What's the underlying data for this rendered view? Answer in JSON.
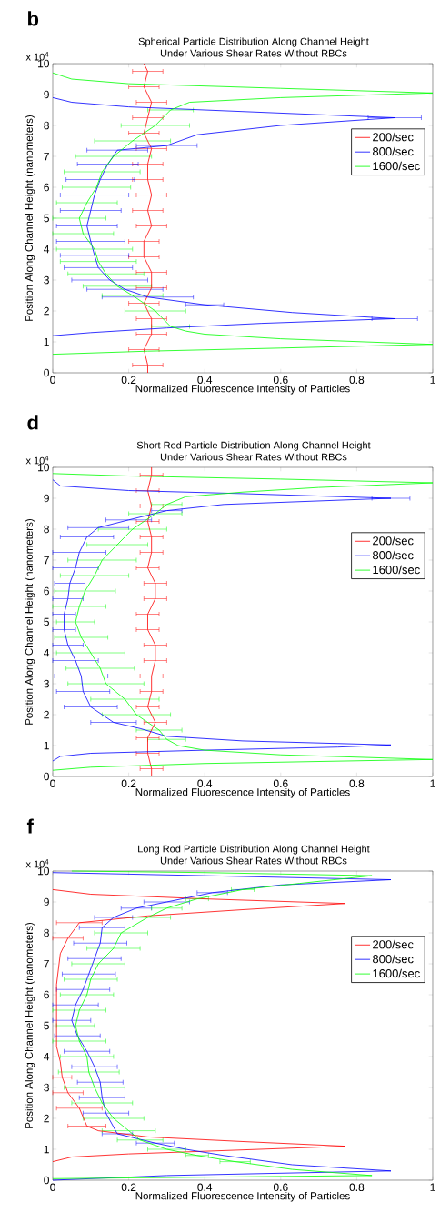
{
  "chart_data": [
    {
      "type": "line",
      "title": "Spherical Particle Distribution Along Channel Height",
      "subtitle": "Under Various Shear Rates Without RBCs",
      "xlabel": "Normalized Fluorescence Intensity of Particles",
      "ylabel": "Position Along Channel Height (nanometers)",
      "annotations": [
        "b",
        "x 10$^{4}$"
      ],
      "xlim": [
        0,
        1
      ],
      "xticks": [
        0,
        0.2,
        0.4,
        0.6,
        0.8,
        1
      ],
      "ylim": [
        0,
        10
      ],
      "yticks": [
        0,
        1,
        2,
        3,
        4,
        5,
        6,
        7,
        8,
        9,
        10
      ],
      "legend": "top right",
      "series": [
        {
          "name": "200/sec",
          "color": "#ff0000",
          "x": [
            0.25,
            0.25,
            0.24,
            0.26,
            0.26,
            0.24,
            0.26,
            0.26,
            0.24,
            0.24,
            0.26,
            0.25,
            0.26,
            0.25,
            0.25,
            0.26,
            0.24,
            0.25,
            0.26,
            0.24,
            0.25,
            0.24
          ],
          "values": [
            0,
            0.25,
            0.75,
            1.25,
            1.75,
            2.25,
            2.75,
            3.25,
            3.75,
            4.25,
            4.75,
            5.25,
            5.75,
            6.25,
            6.75,
            7.25,
            7.75,
            8.25,
            8.75,
            9.25,
            9.75,
            10
          ],
          "xerrors": [
            null,
            0.04,
            0.04,
            0.04,
            0.04,
            0.04,
            0.04,
            0.04,
            0.04,
            0.04,
            0.04,
            0.04,
            0.04,
            0.04,
            0.04,
            0.04,
            0.04,
            0.04,
            0.04,
            0.04,
            0.04,
            null
          ]
        },
        {
          "name": "800/sec",
          "color": "#0000ff",
          "x": [
            0,
            0.1,
            0.3,
            0.55,
            0.9,
            0.63,
            0.4,
            0.25,
            0.19,
            0.15,
            0.12,
            0.11,
            0.1,
            0.09,
            0.1,
            0.11,
            0.125,
            0.145,
            0.17,
            0.3,
            0.38,
            0.6,
            0.9,
            0.5,
            0.2,
            0.05,
            0
          ],
          "values": [
            1.2,
            1.3,
            1.45,
            1.6,
            1.75,
            1.95,
            2.2,
            2.45,
            2.7,
            3,
            3.4,
            3.8,
            4.25,
            4.75,
            5.25,
            5.75,
            6.25,
            6.75,
            7.2,
            7.35,
            7.7,
            8,
            8.25,
            8.45,
            8.6,
            8.75,
            8.9
          ],
          "xerrors": [
            null,
            null,
            null,
            null,
            0.06,
            null,
            0.05,
            0.12,
            0.1,
            0.1,
            0.09,
            0.09,
            0.09,
            0.08,
            0.08,
            0.09,
            0.09,
            0.08,
            0.08,
            0.08,
            null,
            null,
            0.07,
            null,
            null,
            null,
            null
          ]
        },
        {
          "name": "1600/sec",
          "color": "#00ff00",
          "x": [
            0,
            0.25,
            0.6,
            1,
            0.6,
            0.4,
            0.35,
            0.31,
            0.27,
            0.21,
            0.17,
            0.14,
            0.12,
            0.11,
            0.08,
            0.07,
            0.09,
            0.115,
            0.13,
            0.16,
            0.21,
            0.27,
            0.31,
            0.36,
            0.6,
            1,
            0.6,
            0.2,
            0.05,
            0
          ],
          "values": [
            0.6,
            0.7,
            0.8,
            0.92,
            1.1,
            1.25,
            1.35,
            1.5,
            2,
            2.5,
            2.8,
            3.2,
            3.6,
            4,
            4.5,
            5,
            5.5,
            6,
            6.5,
            7,
            7.5,
            8,
            8.5,
            8.75,
            8.9,
            9.05,
            9.2,
            9.35,
            9.5,
            9.7
          ],
          "xerrors": [
            null,
            null,
            null,
            null,
            null,
            null,
            null,
            0.05,
            0.08,
            0.08,
            0.09,
            0.1,
            0.1,
            0.1,
            0.08,
            0.07,
            0.08,
            0.09,
            0.1,
            0.1,
            0.1,
            0.09,
            0.06,
            null,
            null,
            null,
            null,
            null,
            null,
            null
          ]
        }
      ]
    },
    {
      "type": "line",
      "title": "Short Rod Particle Distribution Along Channel Height",
      "subtitle": "Under Various Shear Rates Without RBCs",
      "xlabel": "Normalized Fluorescence Intensity of Particles",
      "ylabel": "Position Along Channel Height (nanometers)",
      "annotations": [
        "d",
        "x 10$^{4}$"
      ],
      "xlim": [
        0,
        1
      ],
      "xticks": [
        0,
        0.2,
        0.4,
        0.6,
        0.8,
        1
      ],
      "ylim": [
        0,
        10
      ],
      "yticks": [
        0,
        1,
        2,
        3,
        4,
        5,
        6,
        7,
        8,
        9,
        10
      ],
      "legend": "top right",
      "series": [
        {
          "name": "200/sec",
          "color": "#ff0000",
          "x": [
            0.26,
            0.26,
            0.25,
            0.25,
            0.27,
            0.25,
            0.26,
            0.26,
            0.27,
            0.27,
            0.25,
            0.25,
            0.27,
            0.27,
            0.25,
            0.26,
            0.26,
            0.25,
            0.26,
            0.25,
            0.26,
            0.26
          ],
          "values": [
            0,
            0.25,
            0.75,
            1.25,
            1.75,
            2.25,
            2.75,
            3.25,
            3.75,
            4.25,
            4.75,
            5.25,
            5.75,
            6.25,
            6.75,
            7.25,
            7.75,
            8.25,
            8.75,
            9.25,
            9.75,
            10
          ],
          "xerrors": [
            null,
            0.03,
            0.03,
            0.03,
            0.03,
            0.03,
            0.03,
            0.03,
            0.03,
            0.03,
            0.03,
            0.03,
            0.03,
            0.03,
            0.03,
            0.03,
            0.03,
            0.03,
            0.03,
            0.03,
            0.03,
            null
          ]
        },
        {
          "name": "800/sec",
          "color": "#0000ff",
          "x": [
            0,
            0.02,
            0.1,
            0.4,
            0.75,
            0.89,
            0.5,
            0.3,
            0.23,
            0.16,
            0.1,
            0.08,
            0.075,
            0.06,
            0.04,
            0.03,
            0.03,
            0.04,
            0.045,
            0.06,
            0.07,
            0.09,
            0.12,
            0.2,
            0.3,
            0.45,
            0.89,
            0.5,
            0.2,
            0.02,
            0
          ],
          "values": [
            0.5,
            0.65,
            0.75,
            0.85,
            0.95,
            1.02,
            1.15,
            1.3,
            1.55,
            1.75,
            2.25,
            2.75,
            3.25,
            3.75,
            4.25,
            4.75,
            5.25,
            5.75,
            6.25,
            6.75,
            7.25,
            7.75,
            8.05,
            8.3,
            8.6,
            8.8,
            9,
            9.15,
            9.25,
            9.4,
            9.6
          ],
          "xerrors": [
            null,
            null,
            null,
            null,
            null,
            null,
            null,
            null,
            null,
            0.06,
            0.07,
            0.07,
            0.07,
            0.06,
            0.04,
            0.03,
            0.03,
            0.04,
            0.04,
            0.06,
            0.07,
            0.07,
            0.08,
            0.06,
            0.04,
            null,
            0.05,
            null,
            null,
            null,
            null
          ]
        },
        {
          "name": "1600/sec",
          "color": "#00ff00",
          "x": [
            0,
            0.1,
            0.4,
            1,
            0.6,
            0.4,
            0.33,
            0.3,
            0.28,
            0.22,
            0.19,
            0.14,
            0.125,
            0.1,
            0.075,
            0.06,
            0.07,
            0.085,
            0.11,
            0.13,
            0.17,
            0.21,
            0.27,
            0.3,
            0.35,
            0.5,
            0.7,
            1,
            0.6,
            0.2,
            0
          ],
          "values": [
            0.2,
            0.3,
            0.42,
            0.55,
            0.7,
            0.85,
            1,
            1.2,
            1.5,
            2,
            2.5,
            3,
            3.5,
            4,
            4.5,
            5,
            5.5,
            6,
            6.5,
            7,
            7.5,
            8,
            8.5,
            8.8,
            9.05,
            9.2,
            9.35,
            9.5,
            9.62,
            9.72,
            9.8
          ],
          "xerrors": [
            null,
            null,
            null,
            null,
            null,
            null,
            null,
            0.05,
            0.06,
            0.09,
            0.09,
            0.1,
            0.09,
            0.09,
            0.07,
            0.05,
            0.07,
            0.08,
            0.09,
            0.09,
            0.08,
            0.09,
            0.07,
            0.04,
            null,
            null,
            null,
            null,
            null,
            null,
            null
          ]
        }
      ]
    },
    {
      "type": "line",
      "title": "Long Rod Particle Distribution Along Channel Height",
      "subtitle": "Under Various Shear Rates Without RBCs",
      "xlabel": "Normalized Fluorescence Intensity of Particles",
      "ylabel": "Position Along Channel Height (nanometers)",
      "annotations": [
        "f",
        "x 10$^{4}$"
      ],
      "xlim": [
        0,
        1
      ],
      "xticks": [
        0,
        0.2,
        0.4,
        0.6,
        0.8,
        1
      ],
      "ylim": [
        0,
        10
      ],
      "yticks": [
        0,
        1,
        2,
        3,
        4,
        5,
        6,
        7,
        8,
        9,
        10
      ],
      "legend": "top right",
      "series": [
        {
          "name": "200/sec",
          "color": "#ff0000",
          "x": [
            0,
            0.05,
            0.2,
            0.5,
            0.77,
            0.5,
            0.25,
            0.12,
            0.09,
            0.07,
            0.04,
            0.025,
            0.02,
            0.01,
            0.01,
            0.02,
            0.04,
            0.07,
            0.25,
            0.5,
            0.77,
            0.4,
            0.1,
            0
          ],
          "values": [
            0.6,
            0.75,
            0.85,
            0.98,
            1.1,
            1.25,
            1.4,
            1.6,
            1.75,
            2.33,
            2.83,
            3.33,
            3.83,
            4.33,
            6.33,
            7.33,
            7.83,
            8.33,
            8.55,
            8.75,
            8.95,
            9.1,
            9.25,
            9.4
          ],
          "xerrors": [
            null,
            null,
            null,
            null,
            null,
            null,
            null,
            null,
            0.05,
            0.06,
            0.04,
            0.025,
            null,
            null,
            null,
            null,
            0.04,
            0.06,
            null,
            null,
            null,
            null,
            null,
            null
          ]
        },
        {
          "name": "800/sec",
          "color": "#0000ff",
          "x": [
            0,
            0.3,
            0.89,
            0.63,
            0.45,
            0.35,
            0.27,
            0.17,
            0.14,
            0.13,
            0.125,
            0.11,
            0.09,
            0.065,
            0.05,
            0.06,
            0.08,
            0.095,
            0.11,
            0.125,
            0.13,
            0.16,
            0.22,
            0.3,
            0.42,
            0.6,
            0.89,
            0.4,
            0
          ],
          "values": [
            0,
            0.15,
            0.3,
            0.5,
            0.8,
            1,
            1.2,
            1.5,
            2.17,
            2.67,
            3.17,
            3.67,
            4.17,
            4.67,
            5.17,
            5.67,
            6.17,
            6.67,
            7.17,
            7.67,
            8.17,
            8.5,
            8.8,
            9,
            9.3,
            9.55,
            9.72,
            9.85,
            9.95
          ],
          "xerrors": [
            null,
            null,
            null,
            null,
            null,
            null,
            0.05,
            0.04,
            0.06,
            0.06,
            0.06,
            0.06,
            0.06,
            0.06,
            0.05,
            0.06,
            0.07,
            0.07,
            0.07,
            0.07,
            0.06,
            0.05,
            0.04,
            0.06,
            0.04,
            null,
            null,
            null,
            null
          ]
        },
        {
          "name": "1600/sec",
          "color": "#00ff00",
          "x": [
            0,
            0.84,
            0.63,
            0.48,
            0.38,
            0.3,
            0.23,
            0.2,
            0.16,
            0.13,
            0.11,
            0.095,
            0.09,
            0.07,
            0.06,
            0.07,
            0.09,
            0.1,
            0.12,
            0.16,
            0.18,
            0.25,
            0.3,
            0.38,
            0.5,
            0.65,
            0.84,
            0.4,
            0.05
          ],
          "values": [
            0.05,
            0.15,
            0.35,
            0.6,
            0.8,
            1,
            1.3,
            1.6,
            2,
            2.5,
            3,
            3.5,
            4,
            4.5,
            5,
            5.5,
            6,
            6.5,
            7,
            7.5,
            8,
            8.5,
            8.8,
            9.1,
            9.4,
            9.6,
            9.85,
            9.95,
            10
          ],
          "xerrors": [
            null,
            null,
            null,
            0.04,
            0.03,
            0.05,
            0.06,
            0.07,
            0.08,
            0.08,
            0.08,
            0.08,
            0.07,
            0.07,
            0.05,
            0.07,
            0.07,
            0.07,
            0.07,
            0.07,
            0.07,
            0.06,
            0.04,
            0.03,
            0.03,
            null,
            null,
            null,
            null
          ]
        }
      ]
    }
  ]
}
